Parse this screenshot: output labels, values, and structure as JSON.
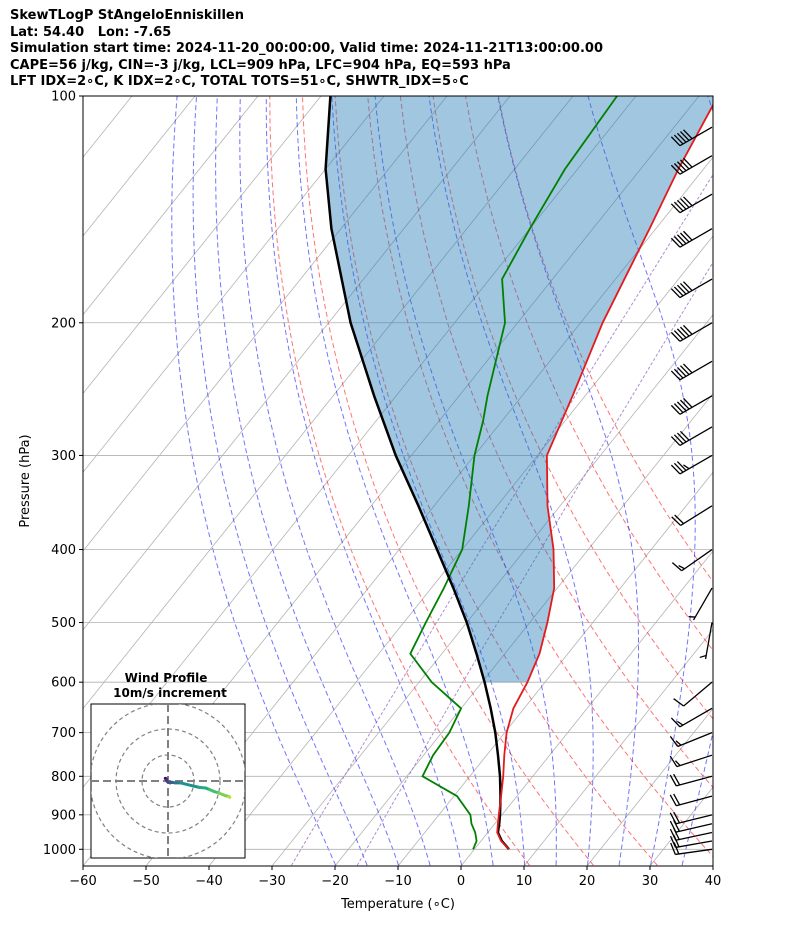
{
  "header": {
    "line1": "SkewTLogP StAngeloEnniskillen",
    "line2": "Lat: 54.40   Lon: -7.65",
    "line3": "Simulation start time: 2024-11-20_00:00:00, Valid time: 2024-11-21T13:00:00.00",
    "line4": "CAPE=56 j/kg, CIN=-3 j/kg, LCL=909 hPa, LFC=904 hPa, EQ=593 hPa",
    "line5": "LFT IDX=2∘C, K IDX=2∘C, TOTAL TOTS=51∘C, SHWTR_IDX=5∘C"
  },
  "chart_data": {
    "type": "line",
    "title": "SkewTLogP StAngeloEnniskillen",
    "xlabel": "Temperature (∘C)",
    "ylabel": "Pressure (hPa)",
    "xlim": [
      -60,
      40
    ],
    "ylim": [
      1050,
      100
    ],
    "yscale": "log",
    "grid": true,
    "xticks": [
      "−60",
      "−50",
      "−40",
      "−30",
      "−20",
      "−10",
      "0",
      "10",
      "20",
      "30",
      "40"
    ],
    "xtick_values": [
      -60,
      -50,
      -40,
      -30,
      -20,
      -10,
      0,
      10,
      20,
      30,
      40
    ],
    "yticks": [
      "100",
      "200",
      "300",
      "400",
      "500",
      "600",
      "700",
      "800",
      "900",
      "1000"
    ],
    "ytick_values": [
      100,
      200,
      300,
      400,
      500,
      600,
      700,
      800,
      900,
      1000
    ],
    "series": [
      {
        "color": "#e41a1c",
        "points": [
          [
            1000,
            5.5
          ],
          [
            975,
            3.2
          ],
          [
            950,
            1.5
          ],
          [
            925,
            0.5
          ],
          [
            900,
            -0.5
          ],
          [
            850,
            -2.5
          ],
          [
            800,
            -4.7
          ],
          [
            750,
            -7.2
          ],
          [
            700,
            -9.7
          ],
          [
            650,
            -11.7
          ],
          [
            600,
            -12.8
          ],
          [
            550,
            -14.5
          ],
          [
            500,
            -17.2
          ],
          [
            450,
            -20.5
          ],
          [
            400,
            -25.5
          ],
          [
            350,
            -32.0
          ],
          [
            300,
            -38.5
          ],
          [
            250,
            -42.0
          ],
          [
            200,
            -46.5
          ],
          [
            150,
            -51.0
          ],
          [
            125,
            -54.0
          ],
          [
            100,
            -57.0
          ]
        ]
      },
      {
        "color": "#008000",
        "points": [
          [
            1000,
            -0.2
          ],
          [
            975,
            -0.7
          ],
          [
            950,
            -2.0
          ],
          [
            925,
            -3.7
          ],
          [
            900,
            -5.0
          ],
          [
            850,
            -9.5
          ],
          [
            800,
            -17.5
          ],
          [
            750,
            -18.5
          ],
          [
            700,
            -18.8
          ],
          [
            650,
            -20.0
          ],
          [
            600,
            -28.0
          ],
          [
            550,
            -35.0
          ],
          [
            500,
            -36.5
          ],
          [
            450,
            -38.0
          ],
          [
            400,
            -40.0
          ],
          [
            350,
            -44.5
          ],
          [
            300,
            -50.0
          ],
          [
            270,
            -53.0
          ],
          [
            250,
            -55.5
          ],
          [
            200,
            -62.0
          ],
          [
            175,
            -68.0
          ],
          [
            150,
            -70.0
          ],
          [
            125,
            -72.0
          ],
          [
            100,
            -73.0
          ]
        ]
      },
      {
        "color": "#000000",
        "points": [
          [
            1000,
            5.5
          ],
          [
            975,
            3.3
          ],
          [
            950,
            1.6
          ],
          [
            925,
            0.7
          ],
          [
            900,
            -0.3
          ],
          [
            850,
            -2.6
          ],
          [
            800,
            -5.2
          ],
          [
            750,
            -8.2
          ],
          [
            700,
            -11.5
          ],
          [
            650,
            -15.3
          ],
          [
            600,
            -19.6
          ],
          [
            550,
            -24.5
          ],
          [
            500,
            -30.0
          ],
          [
            450,
            -36.5
          ],
          [
            400,
            -44.0
          ],
          [
            350,
            -52.5
          ],
          [
            300,
            -62.5
          ],
          [
            250,
            -73.5
          ],
          [
            200,
            -86.5
          ],
          [
            150,
            -101.5
          ],
          [
            125,
            -110.0
          ],
          [
            100,
            -118.5
          ]
        ]
      },
      {
        "color": "#1f77b4",
        "role": "cape-fill",
        "points": [
          [
            100,
            -57.0
          ],
          [
            100,
            -118.5
          ]
        ]
      }
    ],
    "reference_lines": {
      "isotherms_color": "#808080",
      "dry_adiabats_color": "#ff0000",
      "moist_adiabats_color": "#0000ff",
      "mixing_ratio_color": "#9467bd",
      "dry_adiabat_thetas_K": [
        280,
        290,
        300,
        310,
        320,
        330,
        340,
        350
      ],
      "moist_adiabat_starts_C": [
        -20,
        -15,
        -10,
        -5,
        0,
        5,
        10,
        15,
        20,
        25,
        30,
        35
      ],
      "mixing_ratio_gkg": [
        0.4,
        1
      ]
    },
    "wind_barbs": [
      {
        "p": 1000,
        "speed_kt": 22,
        "dir": 262
      },
      {
        "p": 975,
        "speed_kt": 23,
        "dir": 260
      },
      {
        "p": 950,
        "speed_kt": 24,
        "dir": 258
      },
      {
        "p": 925,
        "speed_kt": 24,
        "dir": 257
      },
      {
        "p": 900,
        "speed_kt": 24,
        "dir": 256
      },
      {
        "p": 850,
        "speed_kt": 22,
        "dir": 255
      },
      {
        "p": 800,
        "speed_kt": 20,
        "dir": 255
      },
      {
        "p": 750,
        "speed_kt": 18,
        "dir": 252
      },
      {
        "p": 700,
        "speed_kt": 17,
        "dir": 248
      },
      {
        "p": 650,
        "speed_kt": 15,
        "dir": 240
      },
      {
        "p": 600,
        "speed_kt": 10,
        "dir": 230
      },
      {
        "p": 500,
        "speed_kt": 6,
        "dir": 190
      },
      {
        "p": 450,
        "speed_kt": 7,
        "dir": 210
      },
      {
        "p": 400,
        "speed_kt": 15,
        "dir": 235
      },
      {
        "p": 350,
        "speed_kt": 20,
        "dir": 238
      },
      {
        "p": 300,
        "speed_kt": 35,
        "dir": 240
      },
      {
        "p": 275,
        "speed_kt": 40,
        "dir": 240
      },
      {
        "p": 250,
        "speed_kt": 50,
        "dir": 240
      },
      {
        "p": 225,
        "speed_kt": 50,
        "dir": 240
      },
      {
        "p": 200,
        "speed_kt": 50,
        "dir": 240
      },
      {
        "p": 175,
        "speed_kt": 50,
        "dir": 240
      },
      {
        "p": 150,
        "speed_kt": 50,
        "dir": 240
      },
      {
        "p": 135,
        "speed_kt": 50,
        "dir": 240
      },
      {
        "p": 120,
        "speed_kt": 50,
        "dir": 240
      },
      {
        "p": 110,
        "speed_kt": 50,
        "dir": 240
      }
    ],
    "inset": {
      "title": "Wind Profile",
      "subtitle": "10m/s increment",
      "hodograph": [
        [
          -2.1,
          2.1
        ],
        [
          -1.5,
          1.7
        ],
        [
          -1.3,
          1.1
        ],
        [
          -1.1,
          0.6
        ],
        [
          -0.7,
          -0.2
        ],
        [
          -0.3,
          -0.6
        ],
        [
          1.6,
          -1.4
        ],
        [
          3.0,
          -1.0
        ],
        [
          5.5,
          -1.4
        ],
        [
          9.5,
          -1.4
        ],
        [
          18.0,
          -3.5
        ],
        [
          24.0,
          -4.9
        ],
        [
          29.0,
          -5.4
        ],
        [
          32.0,
          -6.6
        ],
        [
          35.0,
          -7.9
        ],
        [
          39.0,
          -9.2
        ],
        [
          44.0,
          -11.2
        ],
        [
          47.0,
          -12.0
        ],
        [
          47.5,
          -12.6
        ]
      ]
    }
  }
}
